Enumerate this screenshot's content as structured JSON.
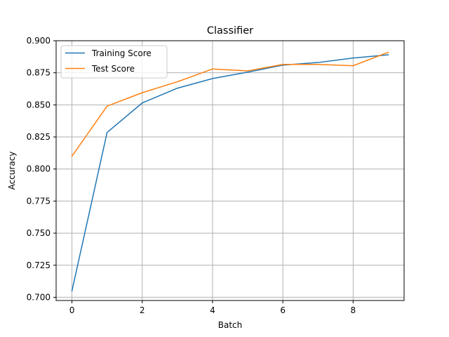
{
  "chart_data": {
    "type": "line",
    "title": "Classifier",
    "xlabel": "Batch",
    "ylabel": "Accuracy",
    "x": [
      0,
      1,
      2,
      3,
      4,
      5,
      6,
      7,
      8,
      9
    ],
    "xlim": [
      -0.45,
      9.45
    ],
    "ylim": [
      0.6975,
      0.9
    ],
    "xticks": [
      0,
      2,
      4,
      6,
      8
    ],
    "xtick_labels": [
      "0",
      "2",
      "4",
      "6",
      "8"
    ],
    "yticks": [
      0.7,
      0.725,
      0.75,
      0.775,
      0.8,
      0.825,
      0.85,
      0.875,
      0.9
    ],
    "ytick_labels": [
      "0.700",
      "0.725",
      "0.750",
      "0.775",
      "0.800",
      "0.825",
      "0.850",
      "0.875",
      "0.900"
    ],
    "grid": true,
    "legend_position": "top-left",
    "series": [
      {
        "name": "Training Score",
        "color": "#1f77b4",
        "values": [
          0.705,
          0.8285,
          0.8515,
          0.863,
          0.8705,
          0.8755,
          0.881,
          0.883,
          0.8865,
          0.889
        ]
      },
      {
        "name": "Test Score",
        "color": "#ff7f0e",
        "values": [
          0.81,
          0.849,
          0.8595,
          0.868,
          0.878,
          0.8765,
          0.8815,
          0.8815,
          0.8805,
          0.891
        ]
      }
    ]
  }
}
